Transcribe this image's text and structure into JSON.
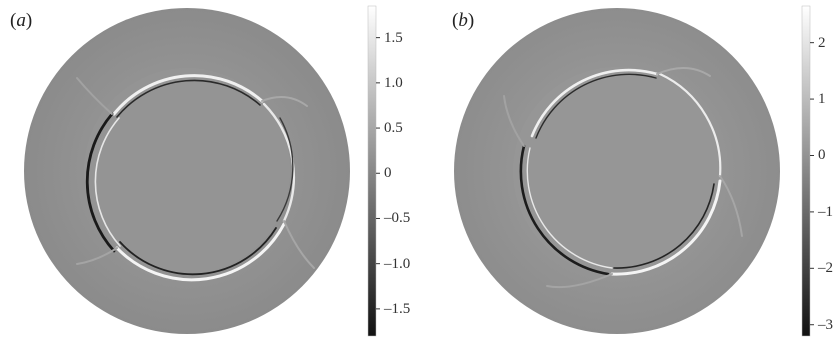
{
  "panels": [
    {
      "label_open": "(",
      "label_letter": "a",
      "label_close": ")",
      "colorbar": {
        "colormap": "grayscale",
        "min": -1.8,
        "max": 1.85,
        "ticks": [
          {
            "value": 1.5,
            "label": "1.5"
          },
          {
            "value": 1.0,
            "label": "1.0"
          },
          {
            "value": 0.5,
            "label": "0.5"
          },
          {
            "value": 0,
            "label": "0"
          },
          {
            "value": -0.5,
            "label": "–0.5"
          },
          {
            "value": -1.0,
            "label": "–1.0"
          },
          {
            "value": -1.5,
            "label": "–1.5"
          }
        ]
      }
    },
    {
      "label_open": "(",
      "label_letter": "b",
      "label_close": ")",
      "colorbar": {
        "colormap": "grayscale",
        "min": -3.2,
        "max": 2.65,
        "ticks": [
          {
            "value": 2,
            "label": "2"
          },
          {
            "value": 1,
            "label": "1"
          },
          {
            "value": 0,
            "label": "0"
          },
          {
            "value": -1,
            "label": "–1"
          },
          {
            "value": -2,
            "label": "–2"
          },
          {
            "value": -3,
            "label": "–3"
          }
        ]
      }
    }
  ],
  "colors": {
    "field_background": "#8e8e8e",
    "inner_disk": "#939393",
    "ring_bright": "#f2f2f2",
    "ring_dark": "#1e1e1e"
  }
}
